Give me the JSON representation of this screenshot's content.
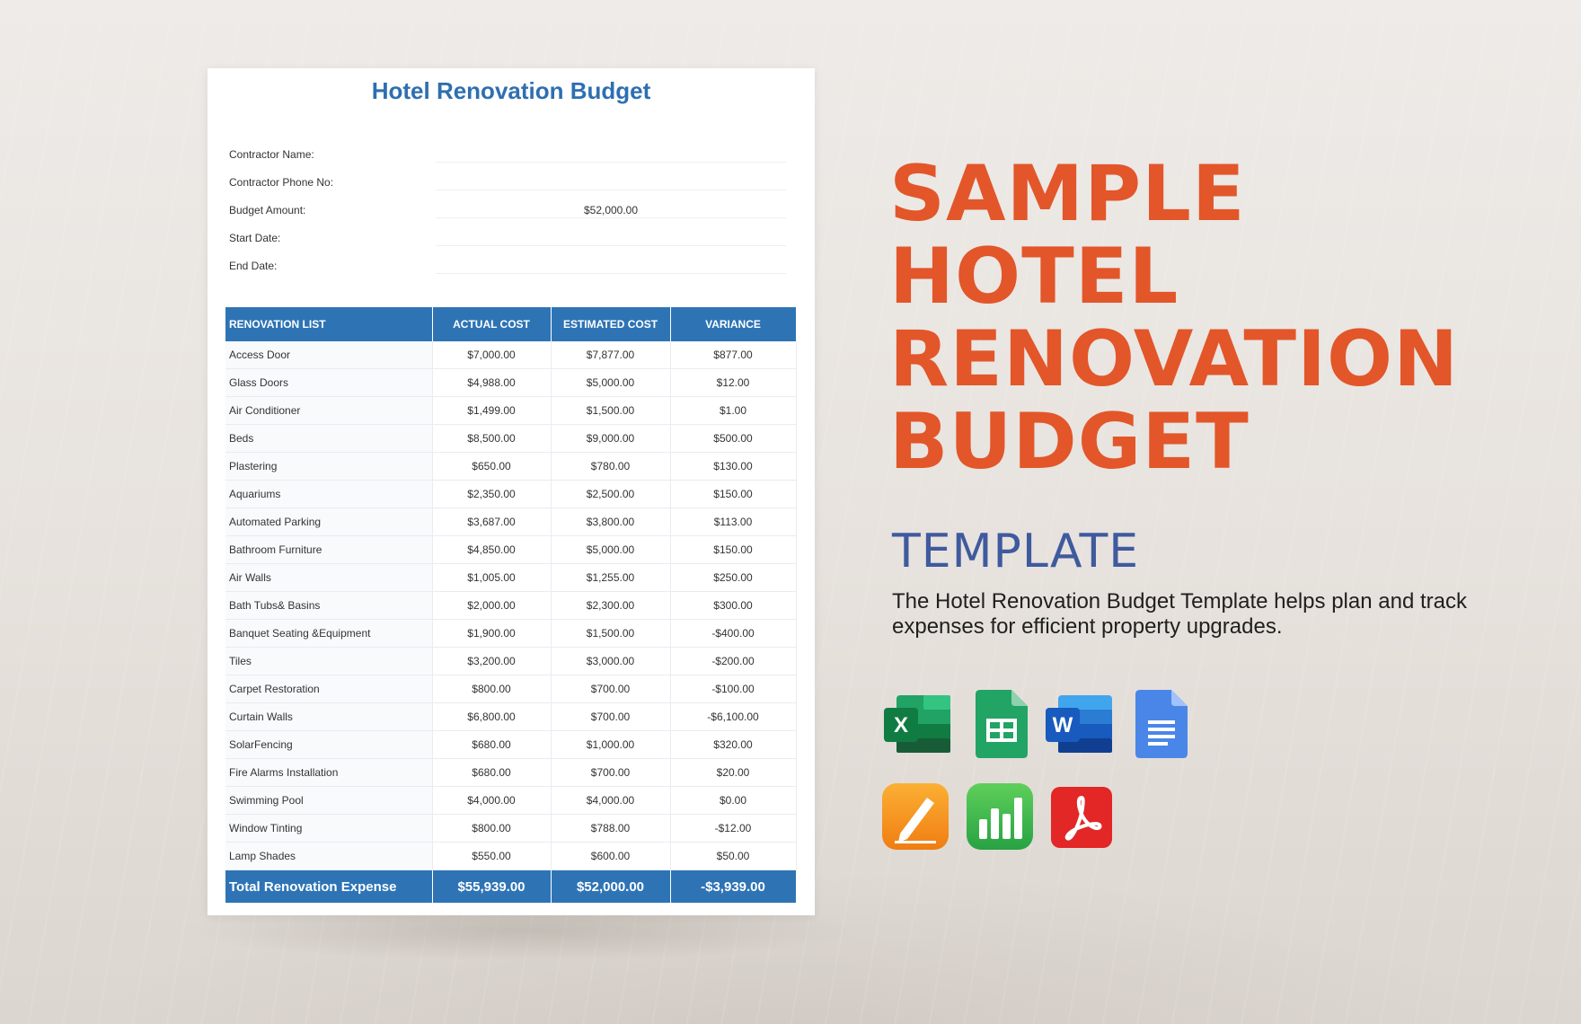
{
  "document": {
    "title": "Hotel Renovation Budget",
    "info": [
      {
        "label": "Contractor Name:",
        "value": ""
      },
      {
        "label": "Contractor Phone No:",
        "value": ""
      },
      {
        "label": "Budget Amount:",
        "value": "$52,000.00"
      },
      {
        "label": "Start Date:",
        "value": ""
      },
      {
        "label": "End Date:",
        "value": ""
      }
    ],
    "table": {
      "headers": [
        "RENOVATION LIST",
        "ACTUAL COST",
        "ESTIMATED COST",
        "VARIANCE"
      ],
      "rows": [
        [
          "Access Door",
          "$7,000.00",
          "$7,877.00",
          "$877.00"
        ],
        [
          "Glass Doors",
          "$4,988.00",
          "$5,000.00",
          "$12.00"
        ],
        [
          "Air Conditioner",
          "$1,499.00",
          "$1,500.00",
          "$1.00"
        ],
        [
          "Beds",
          "$8,500.00",
          "$9,000.00",
          "$500.00"
        ],
        [
          "Plastering",
          "$650.00",
          "$780.00",
          "$130.00"
        ],
        [
          "Aquariums",
          "$2,350.00",
          "$2,500.00",
          "$150.00"
        ],
        [
          "Automated Parking",
          "$3,687.00",
          "$3,800.00",
          "$113.00"
        ],
        [
          "Bathroom Furniture",
          "$4,850.00",
          "$5,000.00",
          "$150.00"
        ],
        [
          "Air Walls",
          "$1,005.00",
          "$1,255.00",
          "$250.00"
        ],
        [
          "Bath Tubs& Basins",
          "$2,000.00",
          "$2,300.00",
          "$300.00"
        ],
        [
          "Banquet Seating &Equipment",
          "$1,900.00",
          "$1,500.00",
          "-$400.00"
        ],
        [
          "Tiles",
          "$3,200.00",
          "$3,000.00",
          "-$200.00"
        ],
        [
          "Carpet Restoration",
          "$800.00",
          "$700.00",
          "-$100.00"
        ],
        [
          "Curtain Walls",
          "$6,800.00",
          "$700.00",
          "-$6,100.00"
        ],
        [
          " SolarFencing",
          "$680.00",
          "$1,000.00",
          "$320.00"
        ],
        [
          "Fire Alarms Installation",
          "$680.00",
          "$700.00",
          "$20.00"
        ],
        [
          "Swimming Pool",
          "$4,000.00",
          "$4,000.00",
          "$0.00"
        ],
        [
          "Window Tinting",
          "$800.00",
          "$788.00",
          "-$12.00"
        ],
        [
          "Lamp Shades",
          "$550.00",
          "$600.00",
          "$50.00"
        ]
      ],
      "total": [
        "Total Renovation Expense",
        "$55,939.00",
        "$52,000.00",
        "-$3,939.00"
      ]
    }
  },
  "headline": {
    "lines": [
      "SAMPLE",
      "HOTEL",
      "RENOVATION",
      "BUDGET"
    ],
    "subtitle": "TEMPLATE",
    "description": "The Hotel Renovation Budget Template helps plan and track expenses for efficient property upgrades."
  },
  "icons": [
    {
      "name": "excel-icon",
      "letter": "X",
      "color": "#1f7a45"
    },
    {
      "name": "google-sheets-icon",
      "color": "#21a464"
    },
    {
      "name": "word-icon",
      "letter": "W",
      "color": "#2b579a"
    },
    {
      "name": "google-docs-icon",
      "color": "#4a86e8"
    },
    {
      "name": "pages-icon",
      "color": "#f39c1a"
    },
    {
      "name": "numbers-icon",
      "color": "#3bb54a"
    },
    {
      "name": "pdf-icon",
      "color": "#e32626"
    }
  ],
  "colors": {
    "accent_orange": "#e2562a",
    "accent_navy": "#3f5a9e",
    "table_blue": "#2e74b5",
    "title_blue": "#2e6fb0"
  }
}
